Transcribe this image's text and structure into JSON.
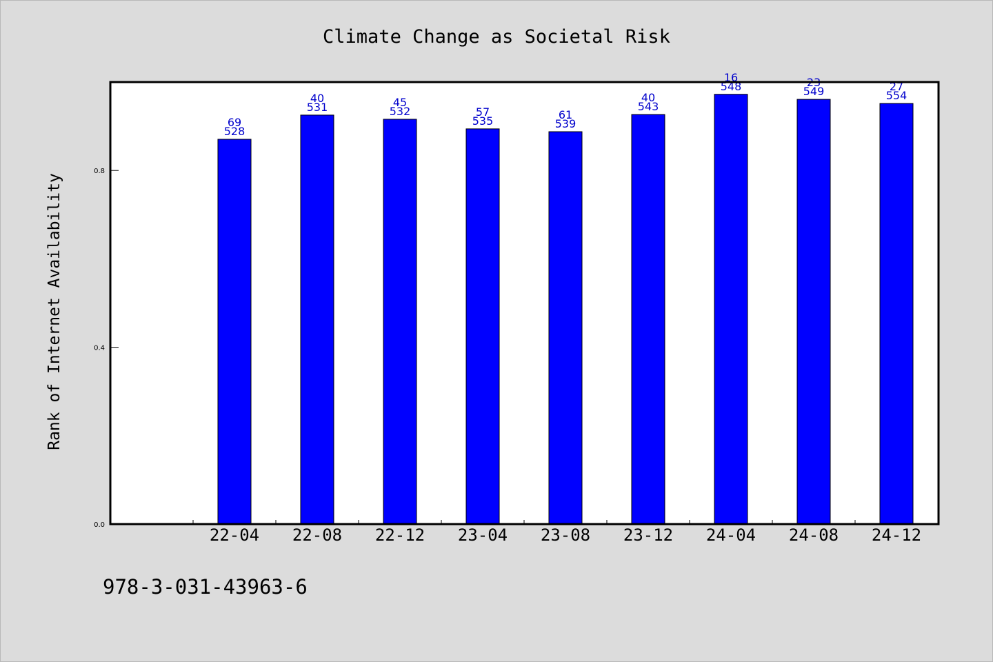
{
  "chart_data": {
    "type": "bar",
    "title": "Climate Change as Societal Risk",
    "xlabel": "",
    "ylabel": "Rank of Internet Availability",
    "ylim": [
      0,
      1.0
    ],
    "yticks": [
      "0.0",
      "0.4",
      "0.8"
    ],
    "ytick_values": [
      0.0,
      0.4,
      0.8
    ],
    "grid": false,
    "legend": "none",
    "categories": [
      "22-04",
      "22-08",
      "22-12",
      "23-04",
      "23-08",
      "23-12",
      "24-04",
      "24-08",
      "24-12"
    ],
    "values": [
      0.8706,
      0.9253,
      0.9159,
      0.8941,
      0.8877,
      0.9266,
      0.9723,
      0.9609,
      0.9516
    ],
    "labels_top": [
      "69",
      "40",
      "45",
      "57",
      "61",
      "40",
      "16",
      "23",
      "27"
    ],
    "labels_bottom": [
      "528",
      "531",
      "532",
      "535",
      "539",
      "543",
      "548",
      "549",
      "554"
    ],
    "colors": {
      "bar": "#0000ff",
      "bar_edge": "#000000",
      "label": "#0000cc",
      "plot_bg": "#ffffff",
      "figure_bg": "#dcdcdc"
    }
  },
  "footer": {
    "code": "978-3-031-43963-6"
  }
}
